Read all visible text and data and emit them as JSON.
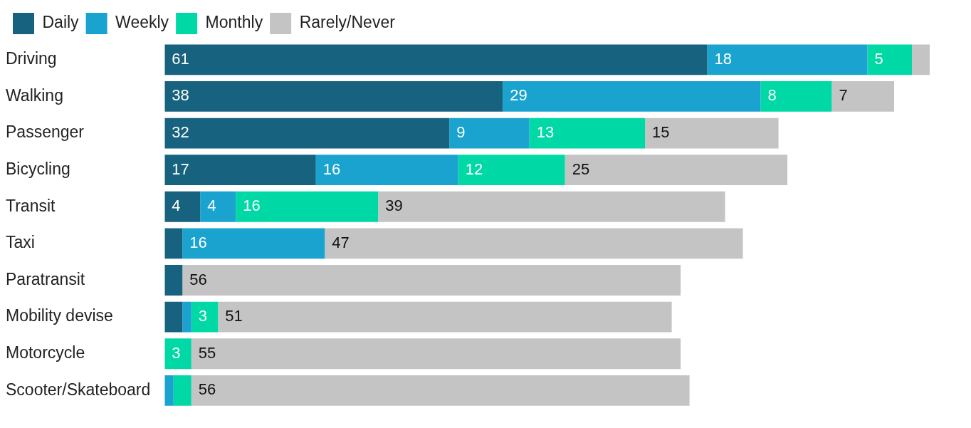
{
  "chart_data": {
    "type": "bar",
    "orientation": "horizontal",
    "stacked": true,
    "legend": "top left",
    "grid": false,
    "tick_labels": "y",
    "categories": [
      "Driving",
      "Walking",
      "Passenger",
      "Bicycling",
      "Transit",
      "Taxi",
      "Paratransit",
      "Mobility devise",
      "Motorcycle",
      "Scooter/Skateboard"
    ],
    "series": [
      {
        "name": "Daily",
        "color": "#17627e",
        "values": [
          61,
          38,
          32,
          17,
          4,
          2,
          2,
          2,
          0,
          0
        ],
        "value_labels": [
          "61",
          "38",
          "32",
          "17",
          "4",
          null,
          null,
          null,
          null,
          null
        ]
      },
      {
        "name": "Weekly",
        "color": "#1ba3cf",
        "values": [
          18,
          29,
          9,
          16,
          4,
          16,
          0,
          1,
          0,
          1
        ],
        "value_labels": [
          "18",
          "29",
          "9",
          "16",
          "4",
          "16",
          null,
          null,
          null,
          null
        ]
      },
      {
        "name": "Monthly",
        "color": "#00d9a5",
        "values": [
          5,
          8,
          13,
          12,
          16,
          0,
          0,
          3,
          3,
          2
        ],
        "value_labels": [
          "5",
          "8",
          "13",
          "12",
          "16",
          null,
          null,
          "3",
          "3",
          null
        ]
      },
      {
        "name": "Rarely/Never",
        "color": "#c4c4c4",
        "values": [
          2,
          7,
          15,
          25,
          39,
          47,
          56,
          51,
          55,
          56
        ],
        "value_labels": [
          null,
          "7",
          "15",
          "25",
          "39",
          "47",
          "56",
          "51",
          "55",
          "56"
        ]
      }
    ]
  }
}
